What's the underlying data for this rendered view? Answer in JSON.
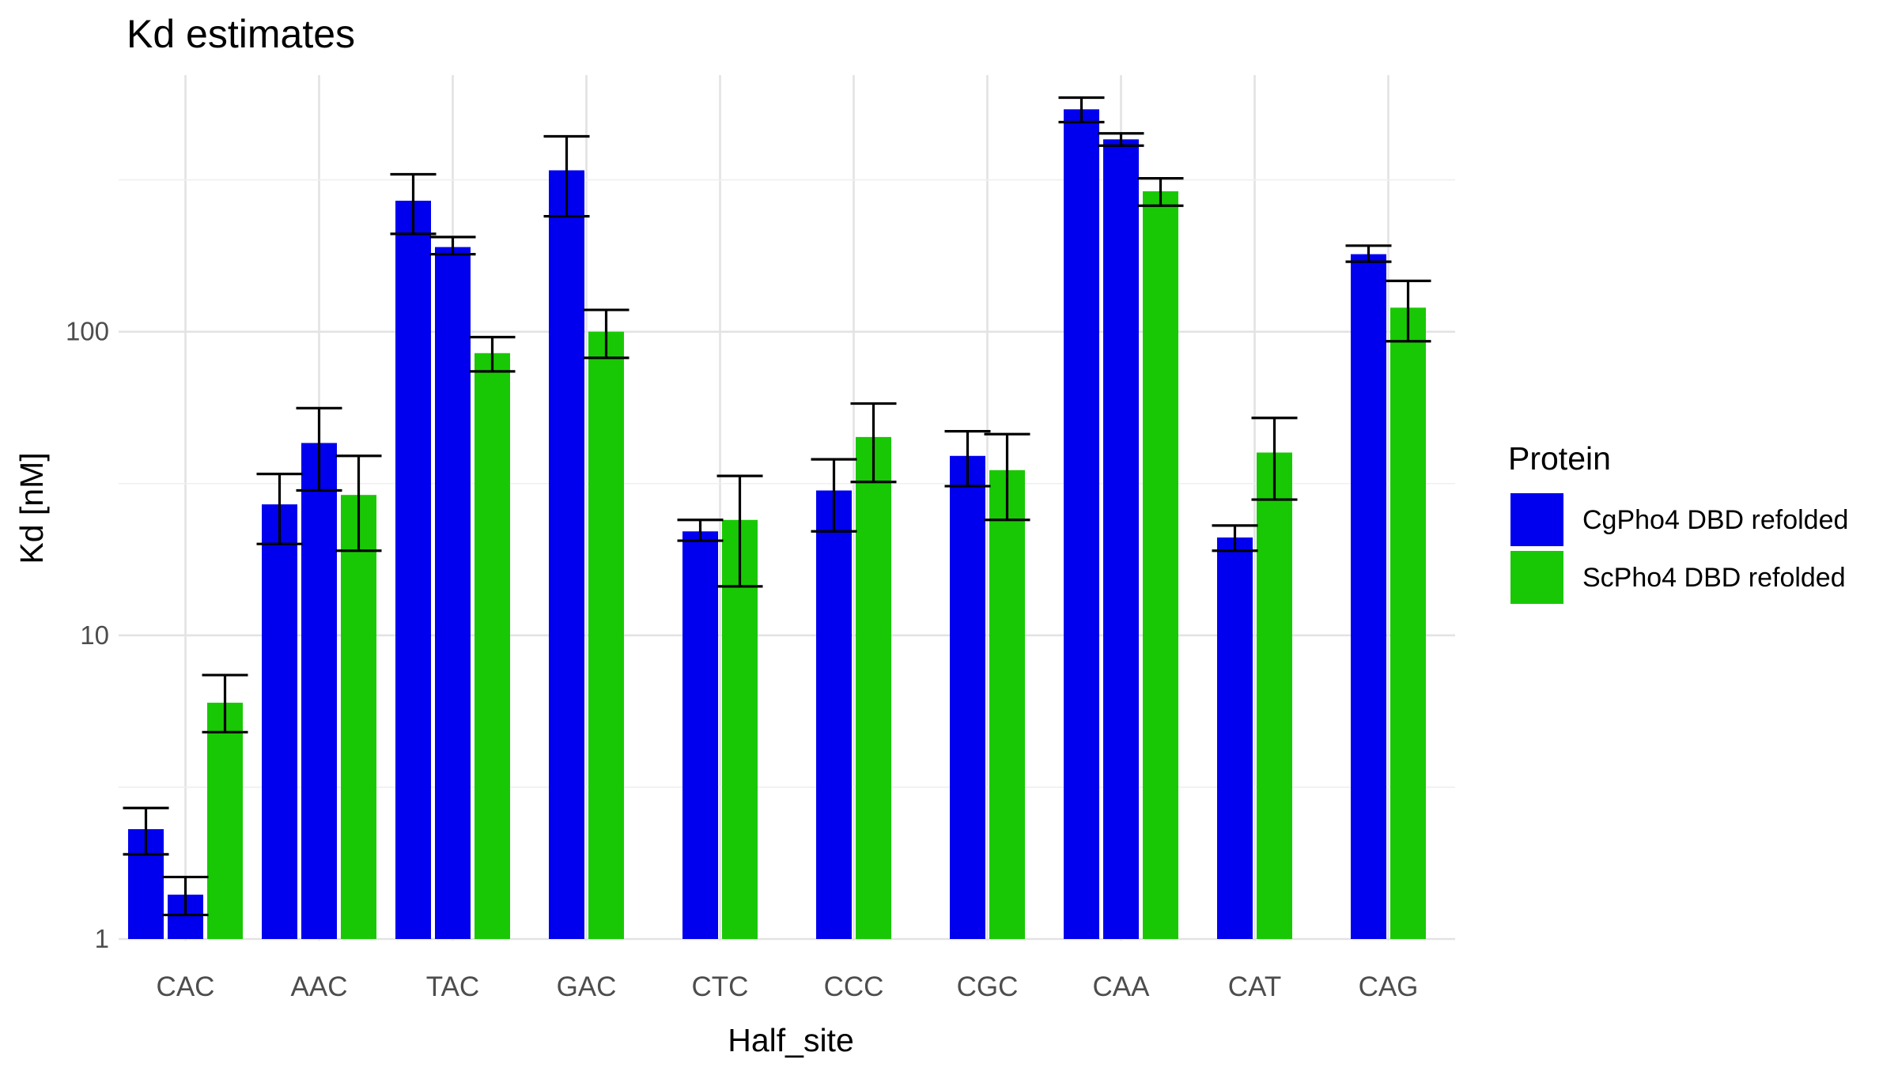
{
  "chart_data": {
    "type": "bar",
    "title": "Kd estimates",
    "xlabel": "Half_site",
    "ylabel": "Kd [nM]",
    "y_scale": "log10",
    "ylim": [
      1,
      700
    ],
    "y_ticks": [
      1,
      10,
      100
    ],
    "y_tick_labels": [
      "1",
      "10",
      "100"
    ],
    "grid": true,
    "legend_title": "Protein",
    "legend_position": "right",
    "categories": [
      "CAC",
      "AAC",
      "TAC",
      "GAC",
      "CTC",
      "CCC",
      "CGC",
      "CAA",
      "CAT",
      "CAG"
    ],
    "series": [
      {
        "name": "CgPho4 DBD refolded",
        "color": "#0000ee"
      },
      {
        "name": "ScPho4 DBD refolded",
        "color": "#19c804"
      }
    ],
    "bars": [
      {
        "category": "CAC",
        "series": "CgPho4 DBD refolded",
        "value": 2.3,
        "lower": 1.9,
        "upper": 2.7
      },
      {
        "category": "CAC",
        "series": "CgPho4 DBD refolded",
        "value": 1.4,
        "lower": 1.2,
        "upper": 1.6
      },
      {
        "category": "CAC",
        "series": "ScPho4 DBD refolded",
        "value": 6.0,
        "lower": 4.8,
        "upper": 7.4
      },
      {
        "category": "AAC",
        "series": "CgPho4 DBD refolded",
        "value": 27,
        "lower": 20,
        "upper": 34
      },
      {
        "category": "AAC",
        "series": "CgPho4 DBD refolded",
        "value": 43,
        "lower": 30,
        "upper": 56
      },
      {
        "category": "AAC",
        "series": "ScPho4 DBD refolded",
        "value": 29,
        "lower": 19,
        "upper": 39
      },
      {
        "category": "TAC",
        "series": "CgPho4 DBD refolded",
        "value": 270,
        "lower": 210,
        "upper": 330
      },
      {
        "category": "TAC",
        "series": "CgPho4 DBD refolded",
        "value": 190,
        "lower": 180,
        "upper": 205
      },
      {
        "category": "TAC",
        "series": "ScPho4 DBD refolded",
        "value": 85,
        "lower": 74,
        "upper": 96
      },
      {
        "category": "GAC",
        "series": "CgPho4 DBD refolded",
        "value": 340,
        "lower": 240,
        "upper": 440
      },
      {
        "category": "GAC",
        "series": "ScPho4 DBD refolded",
        "value": 100,
        "lower": 82,
        "upper": 118
      },
      {
        "category": "CTC",
        "series": "CgPho4 DBD refolded",
        "value": 22,
        "lower": 20.5,
        "upper": 24
      },
      {
        "category": "CTC",
        "series": "ScPho4 DBD refolded",
        "value": 24,
        "lower": 14.5,
        "upper": 33.5
      },
      {
        "category": "CCC",
        "series": "CgPho4 DBD refolded",
        "value": 30,
        "lower": 22,
        "upper": 38
      },
      {
        "category": "CCC",
        "series": "ScPho4 DBD refolded",
        "value": 45,
        "lower": 32,
        "upper": 58
      },
      {
        "category": "CGC",
        "series": "CgPho4 DBD refolded",
        "value": 39,
        "lower": 31,
        "upper": 47
      },
      {
        "category": "CGC",
        "series": "ScPho4 DBD refolded",
        "value": 35,
        "lower": 24,
        "upper": 46
      },
      {
        "category": "CAA",
        "series": "CgPho4 DBD refolded",
        "value": 540,
        "lower": 490,
        "upper": 590
      },
      {
        "category": "CAA",
        "series": "CgPho4 DBD refolded",
        "value": 430,
        "lower": 410,
        "upper": 450
      },
      {
        "category": "CAA",
        "series": "ScPho4 DBD refolded",
        "value": 290,
        "lower": 260,
        "upper": 320
      },
      {
        "category": "CAT",
        "series": "CgPho4 DBD refolded",
        "value": 21,
        "lower": 19,
        "upper": 23
      },
      {
        "category": "CAT",
        "series": "ScPho4 DBD refolded",
        "value": 40,
        "lower": 28,
        "upper": 52
      },
      {
        "category": "CAG",
        "series": "CgPho4 DBD refolded",
        "value": 180,
        "lower": 170,
        "upper": 192
      },
      {
        "category": "CAG",
        "series": "ScPho4 DBD refolded",
        "value": 120,
        "lower": 93,
        "upper": 147
      }
    ]
  }
}
